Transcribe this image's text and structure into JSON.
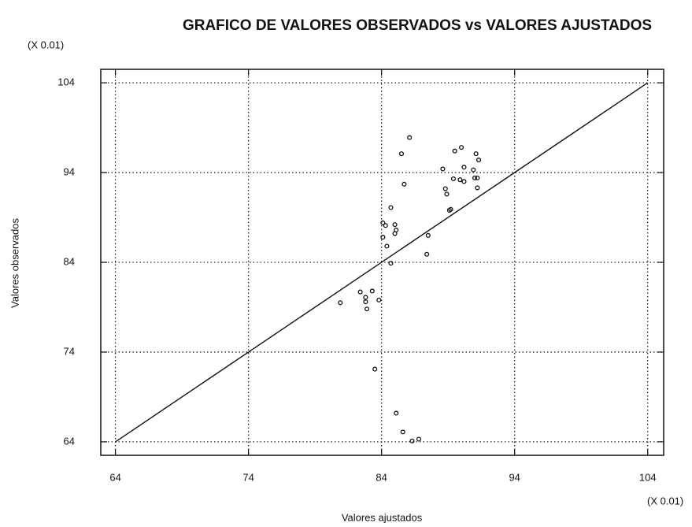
{
  "chart_data": {
    "type": "scatter",
    "title": "GRAFICO DE VALORES OBSERVADOS vs VALORES AJUSTADOS",
    "y_unit_label": "(X 0.01)",
    "x_unit_label": "(X 0.01)",
    "x_label": "Valores ajustados",
    "y_label": "Valores observados",
    "xlim": [
      62.9,
      105.2
    ],
    "ylim": [
      62.5,
      105.5
    ],
    "xticks": [
      64,
      74,
      84,
      94,
      104
    ],
    "yticks": [
      64,
      74,
      84,
      94,
      104
    ],
    "grid": true,
    "color": "#111111",
    "line": {
      "x": [
        64,
        104
      ],
      "y": [
        64,
        104
      ]
    },
    "x": [
      80.9,
      82.4,
      82.8,
      82.8,
      82.9,
      83.3,
      83.8,
      83.5,
      84.1,
      84.1,
      84.3,
      84.4,
      84.7,
      84.7,
      85.0,
      85.0,
      85.1,
      85.1,
      85.5,
      85.7,
      85.6,
      86.1,
      86.3,
      86.8,
      87.4,
      87.5,
      88.6,
      88.8,
      88.9,
      89.1,
      89.2,
      89.4,
      89.5,
      89.9,
      90.0,
      90.2,
      90.2,
      90.9,
      91.0,
      91.1,
      91.2,
      91.2,
      91.3
    ],
    "y": [
      79.5,
      80.7,
      80.1,
      79.6,
      78.8,
      80.8,
      79.8,
      72.1,
      86.8,
      88.4,
      88.1,
      85.8,
      83.9,
      90.1,
      87.2,
      88.2,
      87.6,
      67.2,
      96.1,
      92.7,
      65.1,
      97.9,
      64.1,
      64.3,
      84.9,
      87.0,
      94.4,
      92.2,
      91.6,
      89.8,
      89.9,
      93.3,
      96.4,
      93.2,
      96.8,
      94.6,
      93.0,
      94.3,
      93.4,
      96.1,
      92.3,
      93.4,
      95.4
    ]
  }
}
